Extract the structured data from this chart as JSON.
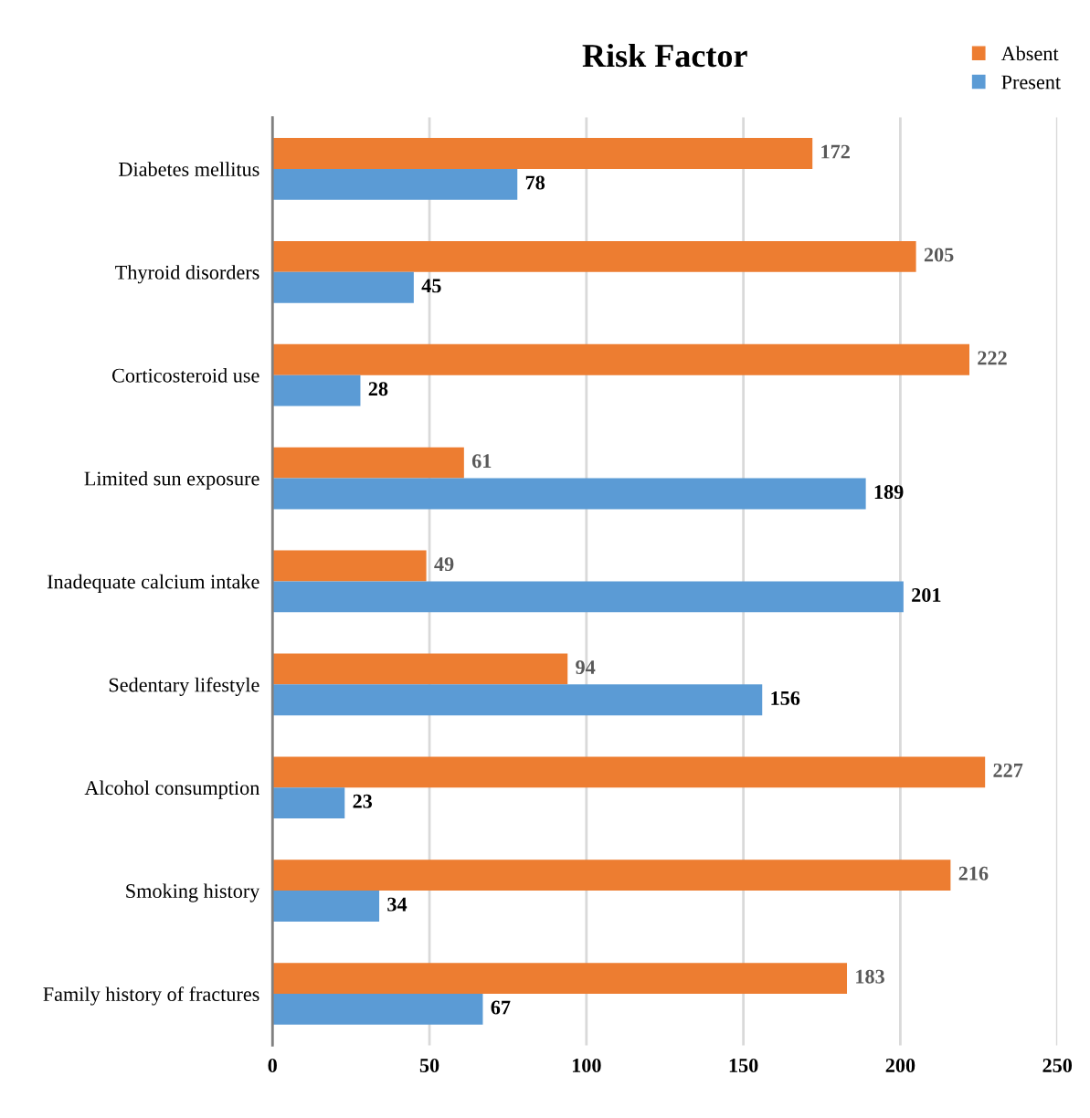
{
  "chart_data": {
    "type": "bar",
    "orientation": "horizontal",
    "title": "Risk Factor",
    "categories": [
      "Diabetes mellitus",
      "Thyroid disorders",
      "Corticosteroid use",
      "Limited sun exposure",
      "Inadequate calcium intake",
      "Sedentary lifestyle",
      "Alcohol consumption",
      "Smoking history",
      "Family history of fractures"
    ],
    "series": [
      {
        "name": "Absent",
        "color": "#ed7d31",
        "values": [
          172,
          205,
          222,
          61,
          49,
          94,
          227,
          216,
          183
        ]
      },
      {
        "name": "Present",
        "color": "#5b9bd5",
        "values": [
          78,
          45,
          28,
          189,
          201,
          156,
          23,
          34,
          67
        ]
      }
    ],
    "xlim": [
      0,
      250
    ],
    "xticks": [
      0,
      50,
      100,
      150,
      200,
      250
    ],
    "grid": "x",
    "legend": "top right",
    "data_labels": true
  }
}
